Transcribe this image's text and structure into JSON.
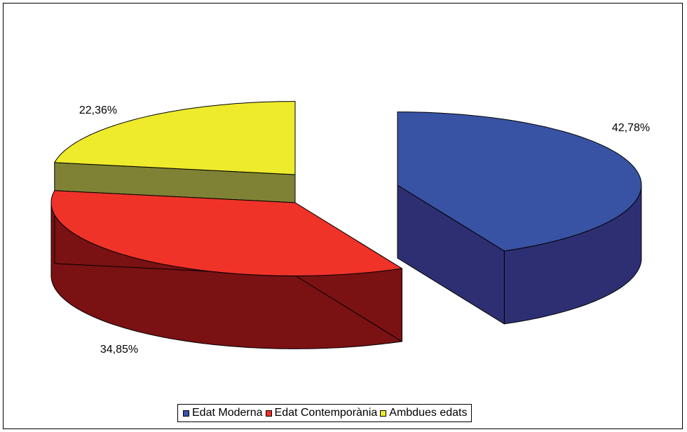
{
  "chart_data": {
    "type": "pie",
    "style": "3d-exploded",
    "categories": [
      "Edat Moderna",
      "Edat Contemporània",
      "Ambdues edats"
    ],
    "values": [
      42.78,
      34.85,
      22.36
    ],
    "data_labels": [
      "42,78%",
      "34,85%",
      "22,36%"
    ],
    "colors": {
      "top": [
        "#3853a4",
        "#ef3329",
        "#eeea2c"
      ],
      "side": [
        "#2e2f73",
        "#7a1113",
        "#7f8235"
      ]
    },
    "legend": "bottom"
  }
}
